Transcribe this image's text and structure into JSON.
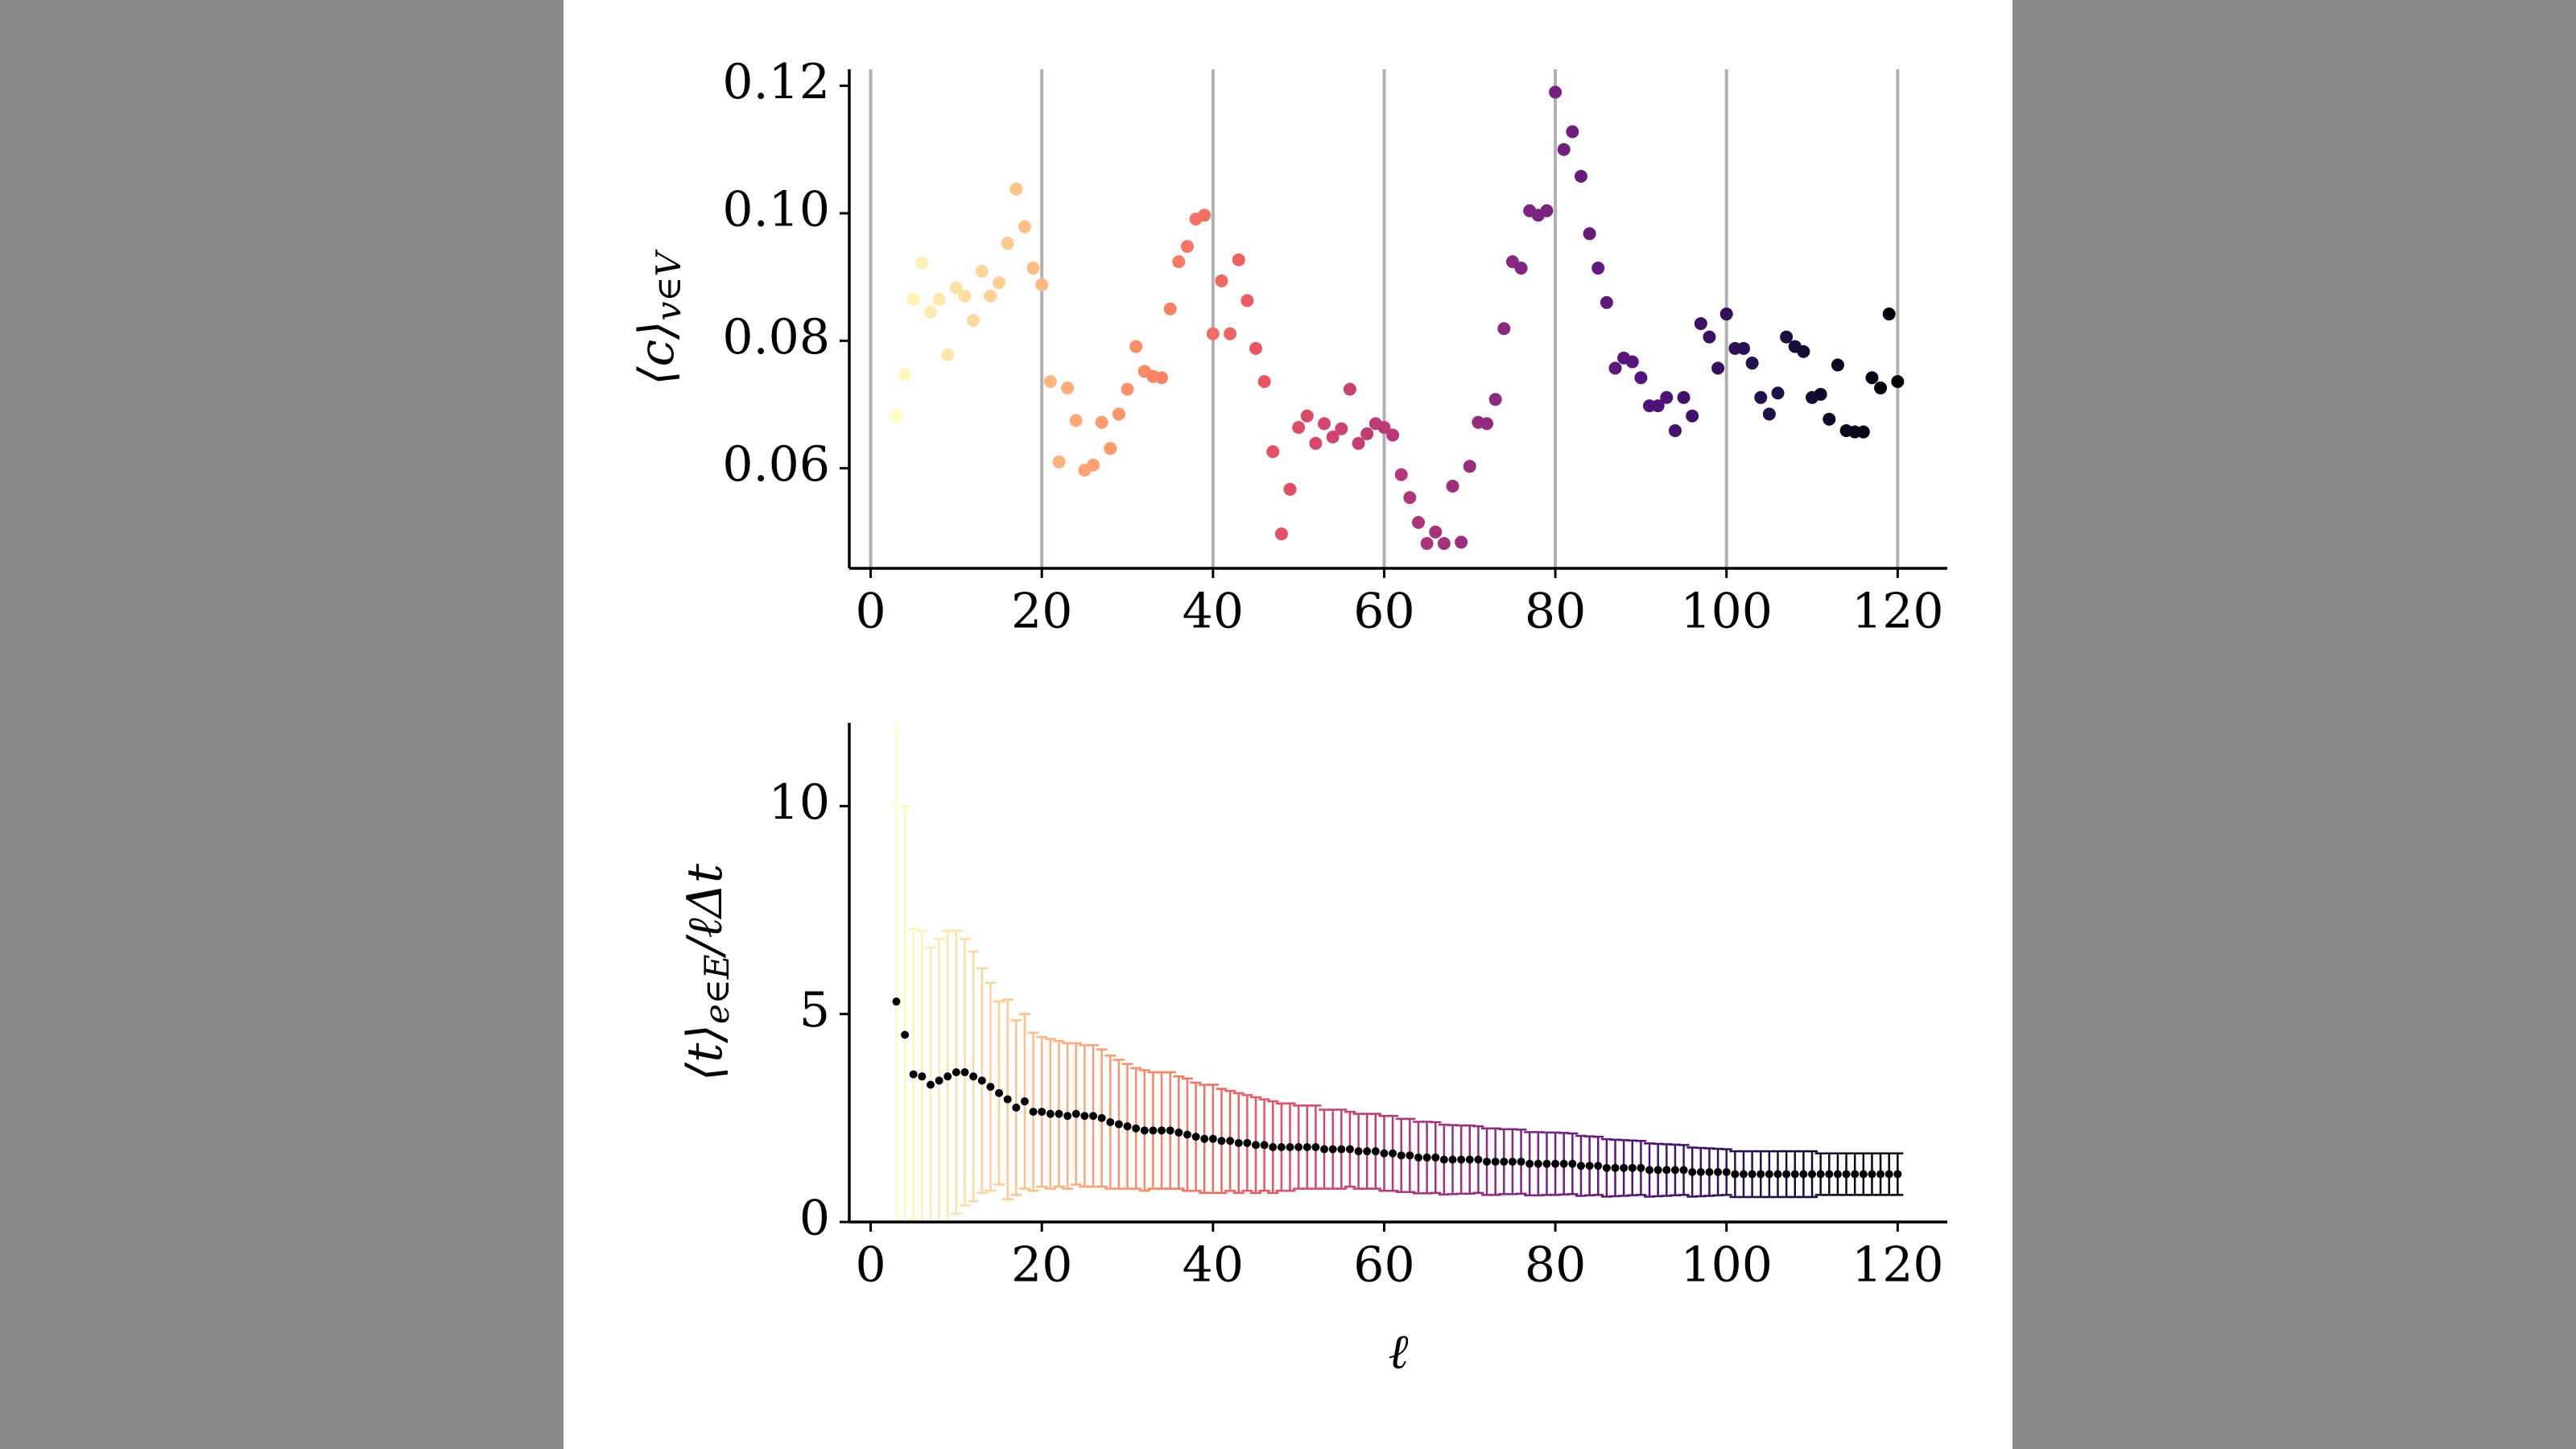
{
  "chart_data": [
    {
      "type": "scatter",
      "ylabel": {
        "main": "⟨c⟩",
        "sub": "v∈V"
      },
      "x": [
        3,
        4,
        5,
        6,
        7,
        8,
        9,
        10,
        11,
        12,
        13,
        14,
        15,
        16,
        17,
        18,
        19,
        20,
        21,
        22,
        23,
        24,
        25,
        26,
        27,
        28,
        29,
        30,
        31,
        32,
        33,
        34,
        35,
        36,
        37,
        38,
        39,
        40,
        41,
        42,
        43,
        44,
        45,
        46,
        47,
        48,
        49,
        50,
        51,
        52,
        53,
        54,
        55,
        56,
        57,
        58,
        59,
        60,
        61,
        62,
        63,
        64,
        65,
        66,
        67,
        68,
        69,
        70,
        71,
        72,
        73,
        74,
        75,
        76,
        77,
        78,
        79,
        80,
        81,
        82,
        83,
        84,
        85,
        86,
        87,
        88,
        89,
        90,
        91,
        92,
        93,
        94,
        95,
        96,
        97,
        98,
        99,
        100,
        101,
        102,
        103,
        104,
        105,
        106,
        107,
        108,
        109,
        110,
        111,
        112,
        113,
        114,
        115,
        116,
        117,
        118,
        119,
        120
      ],
      "values": [
        0.0682,
        0.0747,
        0.0865,
        0.0922,
        0.0845,
        0.0865,
        0.0778,
        0.0883,
        0.087,
        0.0832,
        0.0909,
        0.087,
        0.0891,
        0.0953,
        0.1038,
        0.0979,
        0.0914,
        0.0888,
        0.0736,
        0.061,
        0.0726,
        0.0675,
        0.0597,
        0.0605,
        0.0672,
        0.0631,
        0.0685,
        0.0724,
        0.0791,
        0.0752,
        0.0744,
        0.0742,
        0.085,
        0.0924,
        0.0948,
        0.0991,
        0.0997,
        0.0811,
        0.0894,
        0.0811,
        0.0927,
        0.0863,
        0.0788,
        0.0736,
        0.0626,
        0.0497,
        0.0567,
        0.0664,
        0.0682,
        0.0639,
        0.067,
        0.0649,
        0.0662,
        0.0724,
        0.0639,
        0.0654,
        0.067,
        0.0664,
        0.0652,
        0.059,
        0.0554,
        0.0515,
        0.0482,
        0.05,
        0.0482,
        0.0572,
        0.0484,
        0.0603,
        0.0672,
        0.067,
        0.0708,
        0.0819,
        0.0924,
        0.0914,
        0.1004,
        0.0997,
        0.1004,
        0.119,
        0.11,
        0.1128,
        0.1058,
        0.0968,
        0.0914,
        0.086,
        0.0757,
        0.0773,
        0.0767,
        0.0742,
        0.0698,
        0.0698,
        0.0711,
        0.0659,
        0.0711,
        0.0682,
        0.0827,
        0.0806,
        0.0757,
        0.0842,
        0.0788,
        0.0788,
        0.0765,
        0.0711,
        0.0685,
        0.0718,
        0.0806,
        0.0791,
        0.0783,
        0.0711,
        0.0716,
        0.0677,
        0.0762,
        0.0659,
        0.0657,
        0.0657,
        0.0742,
        0.0726,
        0.0842,
        0.0736
      ],
      "colormap": [
        "#fcfdbf",
        "#fec287",
        "#fc8961",
        "#e75263",
        "#b73779",
        "#822681",
        "#51127c",
        "#1d1147",
        "#000004"
      ],
      "xlim": [
        -2.5,
        125.8
      ],
      "ylim": [
        0.0443,
        0.1226
      ],
      "xticks": [
        0,
        20,
        40,
        60,
        80,
        100,
        120
      ],
      "yticks": [
        0.06,
        0.08,
        {
          "value": 0.1,
          "label": "0.10"
        },
        0.12
      ],
      "grid": "x"
    },
    {
      "type": "errorbar",
      "xlabel": "ℓ",
      "ylabel": {
        "main": "⟨t⟩",
        "sub": "e∈E",
        "rest": "/ℓΔt"
      },
      "x": [
        3,
        4,
        5,
        6,
        7,
        8,
        9,
        10,
        11,
        12,
        13,
        14,
        15,
        16,
        17,
        18,
        19,
        20,
        21,
        22,
        23,
        24,
        25,
        26,
        27,
        28,
        29,
        30,
        31,
        32,
        33,
        34,
        35,
        36,
        37,
        38,
        39,
        40,
        41,
        42,
        43,
        44,
        45,
        46,
        47,
        48,
        49,
        50,
        51,
        52,
        53,
        54,
        55,
        56,
        57,
        58,
        59,
        60,
        61,
        62,
        63,
        64,
        65,
        66,
        67,
        68,
        69,
        70,
        71,
        72,
        73,
        74,
        75,
        76,
        77,
        78,
        79,
        80,
        81,
        82,
        83,
        84,
        85,
        86,
        87,
        88,
        89,
        90,
        91,
        92,
        93,
        94,
        95,
        96,
        97,
        98,
        99,
        100,
        101,
        102,
        103,
        104,
        105,
        106,
        107,
        108,
        109,
        110,
        111,
        112,
        113,
        114,
        115,
        116,
        117,
        118,
        119,
        120
      ],
      "values": [
        5.3,
        4.5,
        3.55,
        3.5,
        3.3,
        3.4,
        3.5,
        3.6,
        3.6,
        3.5,
        3.4,
        3.25,
        3.1,
        2.95,
        2.75,
        2.9,
        2.65,
        2.65,
        2.6,
        2.6,
        2.55,
        2.6,
        2.55,
        2.55,
        2.5,
        2.4,
        2.35,
        2.3,
        2.25,
        2.2,
        2.2,
        2.2,
        2.2,
        2.15,
        2.1,
        2.05,
        2.0,
        2.0,
        1.95,
        1.95,
        1.9,
        1.9,
        1.85,
        1.85,
        1.8,
        1.8,
        1.8,
        1.8,
        1.8,
        1.8,
        1.75,
        1.75,
        1.75,
        1.75,
        1.7,
        1.7,
        1.7,
        1.65,
        1.65,
        1.6,
        1.6,
        1.55,
        1.55,
        1.55,
        1.5,
        1.5,
        1.5,
        1.5,
        1.5,
        1.45,
        1.45,
        1.45,
        1.45,
        1.45,
        1.4,
        1.4,
        1.4,
        1.4,
        1.4,
        1.4,
        1.35,
        1.35,
        1.35,
        1.3,
        1.3,
        1.3,
        1.3,
        1.3,
        1.25,
        1.25,
        1.25,
        1.25,
        1.25,
        1.2,
        1.2,
        1.2,
        1.2,
        1.2,
        1.15,
        1.15,
        1.15,
        1.15,
        1.15,
        1.15,
        1.15,
        1.15,
        1.15,
        1.15,
        1.15,
        1.15,
        1.15,
        1.15,
        1.15,
        1.15,
        1.15,
        1.15,
        1.15,
        1.15
      ],
      "errors": [
        7.5,
        5.5,
        3.5,
        3.5,
        3.3,
        3.4,
        3.5,
        3.4,
        3.2,
        3.0,
        2.7,
        2.5,
        2.2,
        2.4,
        2.1,
        2.1,
        1.9,
        1.8,
        1.8,
        1.75,
        1.75,
        1.7,
        1.7,
        1.7,
        1.65,
        1.6,
        1.55,
        1.5,
        1.45,
        1.45,
        1.4,
        1.4,
        1.4,
        1.35,
        1.35,
        1.3,
        1.3,
        1.3,
        1.25,
        1.2,
        1.2,
        1.15,
        1.15,
        1.1,
        1.1,
        1.05,
        1.05,
        1.0,
        1.0,
        1.0,
        0.95,
        0.95,
        0.95,
        0.9,
        0.9,
        0.9,
        0.9,
        0.9,
        0.9,
        0.88,
        0.88,
        0.86,
        0.86,
        0.85,
        0.84,
        0.83,
        0.82,
        0.82,
        0.8,
        0.8,
        0.8,
        0.78,
        0.78,
        0.77,
        0.76,
        0.76,
        0.75,
        0.75,
        0.74,
        0.73,
        0.72,
        0.71,
        0.7,
        0.69,
        0.68,
        0.67,
        0.66,
        0.65,
        0.64,
        0.63,
        0.62,
        0.61,
        0.6,
        0.59,
        0.58,
        0.57,
        0.56,
        0.55,
        0.55,
        0.55,
        0.55,
        0.55,
        0.55,
        0.55,
        0.55,
        0.55,
        0.55,
        0.55,
        0.5,
        0.5,
        0.5,
        0.5,
        0.5,
        0.5,
        0.5,
        0.5,
        0.5,
        0.5
      ],
      "colormap": [
        "#fcfdbf",
        "#fec287",
        "#fc8961",
        "#e75263",
        "#b73779",
        "#822681",
        "#51127c",
        "#1d1147",
        "#000004"
      ],
      "marker_color": "#000000",
      "xlim": [
        -2.5,
        125.8
      ],
      "ylim": [
        0,
        12
      ],
      "xticks": [
        0,
        20,
        40,
        60,
        80,
        100,
        120
      ],
      "yticks": [
        0,
        5,
        10
      ],
      "grid": false
    }
  ]
}
